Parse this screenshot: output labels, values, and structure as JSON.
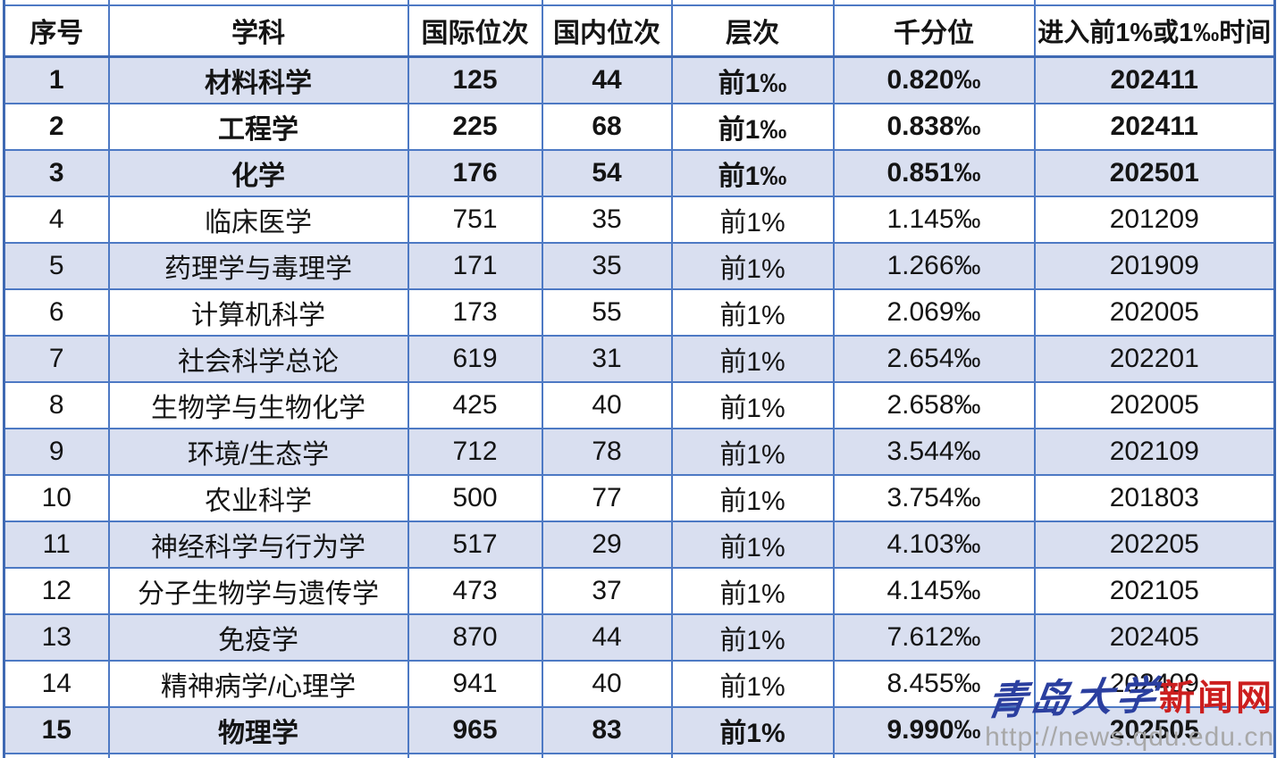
{
  "table": {
    "headers": [
      "序号",
      "学科",
      "国际位次",
      "国内位次",
      "层次",
      "千分位",
      "进入前1%或1‰时间"
    ],
    "rows": [
      {
        "seq": "1",
        "subject": "材料科学",
        "intl_rank": "125",
        "domestic_rank": "44",
        "tier": "前1‰",
        "per_mille": "0.820‰",
        "entry_time": "202411",
        "emphasis": true
      },
      {
        "seq": "2",
        "subject": "工程学",
        "intl_rank": "225",
        "domestic_rank": "68",
        "tier": "前1‰",
        "per_mille": "0.838‰",
        "entry_time": "202411",
        "emphasis": true
      },
      {
        "seq": "3",
        "subject": "化学",
        "intl_rank": "176",
        "domestic_rank": "54",
        "tier": "前1‰",
        "per_mille": "0.851‰",
        "entry_time": "202501",
        "emphasis": true
      },
      {
        "seq": "4",
        "subject": "临床医学",
        "intl_rank": "751",
        "domestic_rank": "35",
        "tier": "前1%",
        "per_mille": "1.145‰",
        "entry_time": "201209",
        "emphasis": false
      },
      {
        "seq": "5",
        "subject": "药理学与毒理学",
        "intl_rank": "171",
        "domestic_rank": "35",
        "tier": "前1%",
        "per_mille": "1.266‰",
        "entry_time": "201909",
        "emphasis": false
      },
      {
        "seq": "6",
        "subject": "计算机科学",
        "intl_rank": "173",
        "domestic_rank": "55",
        "tier": "前1%",
        "per_mille": "2.069‰",
        "entry_time": "202005",
        "emphasis": false
      },
      {
        "seq": "7",
        "subject": "社会科学总论",
        "intl_rank": "619",
        "domestic_rank": "31",
        "tier": "前1%",
        "per_mille": "2.654‰",
        "entry_time": "202201",
        "emphasis": false
      },
      {
        "seq": "8",
        "subject": "生物学与生物化学",
        "intl_rank": "425",
        "domestic_rank": "40",
        "tier": "前1%",
        "per_mille": "2.658‰",
        "entry_time": "202005",
        "emphasis": false
      },
      {
        "seq": "9",
        "subject": "环境/生态学",
        "intl_rank": "712",
        "domestic_rank": "78",
        "tier": "前1%",
        "per_mille": "3.544‰",
        "entry_time": "202109",
        "emphasis": false
      },
      {
        "seq": "10",
        "subject": "农业科学",
        "intl_rank": "500",
        "domestic_rank": "77",
        "tier": "前1%",
        "per_mille": "3.754‰",
        "entry_time": "201803",
        "emphasis": false
      },
      {
        "seq": "11",
        "subject": "神经科学与行为学",
        "intl_rank": "517",
        "domestic_rank": "29",
        "tier": "前1%",
        "per_mille": "4.103‰",
        "entry_time": "202205",
        "emphasis": false
      },
      {
        "seq": "12",
        "subject": "分子生物学与遗传学",
        "intl_rank": "473",
        "domestic_rank": "37",
        "tier": "前1%",
        "per_mille": "4.145‰",
        "entry_time": "202105",
        "emphasis": false
      },
      {
        "seq": "13",
        "subject": "免疫学",
        "intl_rank": "870",
        "domestic_rank": "44",
        "tier": "前1%",
        "per_mille": "7.612‰",
        "entry_time": "202405",
        "emphasis": false
      },
      {
        "seq": "14",
        "subject": "精神病学/心理学",
        "intl_rank": "941",
        "domestic_rank": "40",
        "tier": "前1%",
        "per_mille": "8.455‰",
        "entry_time": "202409",
        "emphasis": false
      },
      {
        "seq": "15",
        "subject": "物理学",
        "intl_rank": "965",
        "domestic_rank": "83",
        "tier": "前1%",
        "per_mille": "9.990‰",
        "entry_time": "202505",
        "emphasis": true
      }
    ]
  },
  "watermark": {
    "site_name_cn": "青岛大学",
    "site_name_suffix": "新闻网",
    "url": "http://news.qdu.edu.cn"
  },
  "colors": {
    "border_blue": "#4d79c4",
    "border_blue_heavy": "#3f69b3",
    "band_fill": "#d9dff0",
    "watermark_blue": "#2b3f9f",
    "watermark_red": "#cc1f1f",
    "watermark_gray": "#a8a8a8"
  }
}
